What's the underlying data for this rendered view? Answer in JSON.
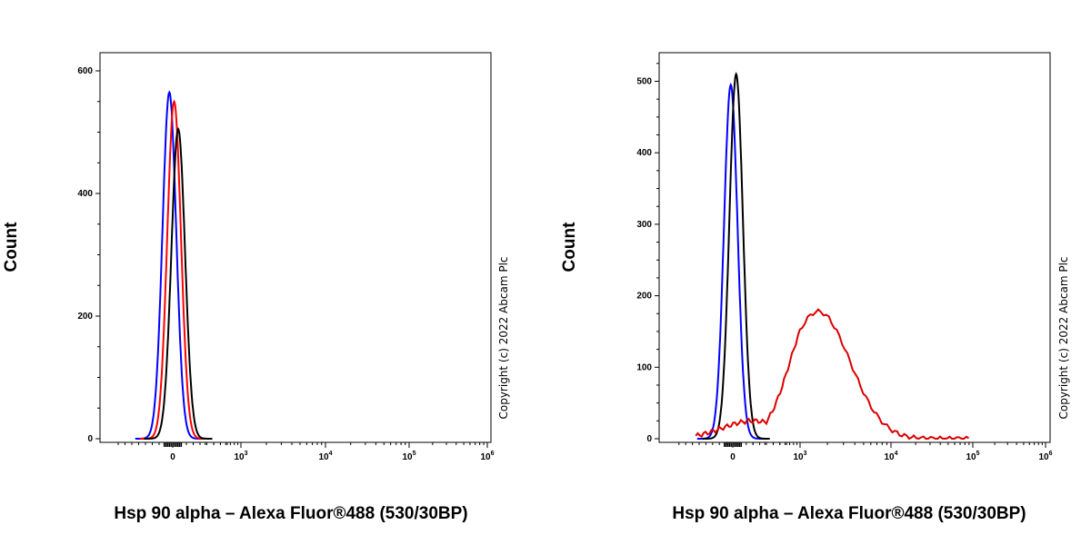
{
  "chart_data": [
    {
      "type": "histogram",
      "xlabel": "Hsp 90 alpha – Alexa Fluor®488 (530/30BP)",
      "ylabel": "Count",
      "copyright": "Copyright (c) 2022 Abcam Plc",
      "x_scale": "biexponential",
      "x_ticks": [
        {
          "base": "0",
          "exp": ""
        },
        {
          "base": "10",
          "exp": "3"
        },
        {
          "base": "10",
          "exp": "4"
        },
        {
          "base": "10",
          "exp": "5"
        },
        {
          "base": "10",
          "exp": "6"
        }
      ],
      "y_ticks": [
        "0",
        "200",
        "400",
        "600"
      ],
      "ylim": [
        0,
        600
      ],
      "series": [
        {
          "color": "#0000ff",
          "peak_x": -0.05,
          "peak_y": 565,
          "width": 0.1
        },
        {
          "color": "#ff0000",
          "peak_x": 0.02,
          "peak_y": 550,
          "width": 0.1
        },
        {
          "color": "#000000",
          "peak_x": 0.08,
          "peak_y": 505,
          "width": 0.1
        }
      ]
    },
    {
      "type": "histogram",
      "xlabel": "Hsp 90 alpha – Alexa Fluor®488 (530/30BP)",
      "ylabel": "Count",
      "copyright": "Copyright (c) 2022 Abcam Plc",
      "x_scale": "biexponential",
      "x_ticks": [
        {
          "base": "0",
          "exp": ""
        },
        {
          "base": "10",
          "exp": "3"
        },
        {
          "base": "10",
          "exp": "4"
        },
        {
          "base": "10",
          "exp": "5"
        },
        {
          "base": "10",
          "exp": "6"
        }
      ],
      "y_ticks": [
        "0",
        "100",
        "200",
        "300",
        "400",
        "500"
      ],
      "ylim": [
        0,
        540
      ],
      "series": [
        {
          "color": "#0000ff",
          "peak_x": -0.03,
          "peak_y": 495,
          "width": 0.1
        },
        {
          "color": "#000000",
          "peak_x": 0.05,
          "peak_y": 510,
          "width": 0.1
        },
        {
          "color": "#dd0000",
          "peak_x": 1.2,
          "peak_y": 178,
          "width": 0.35
        }
      ]
    }
  ]
}
